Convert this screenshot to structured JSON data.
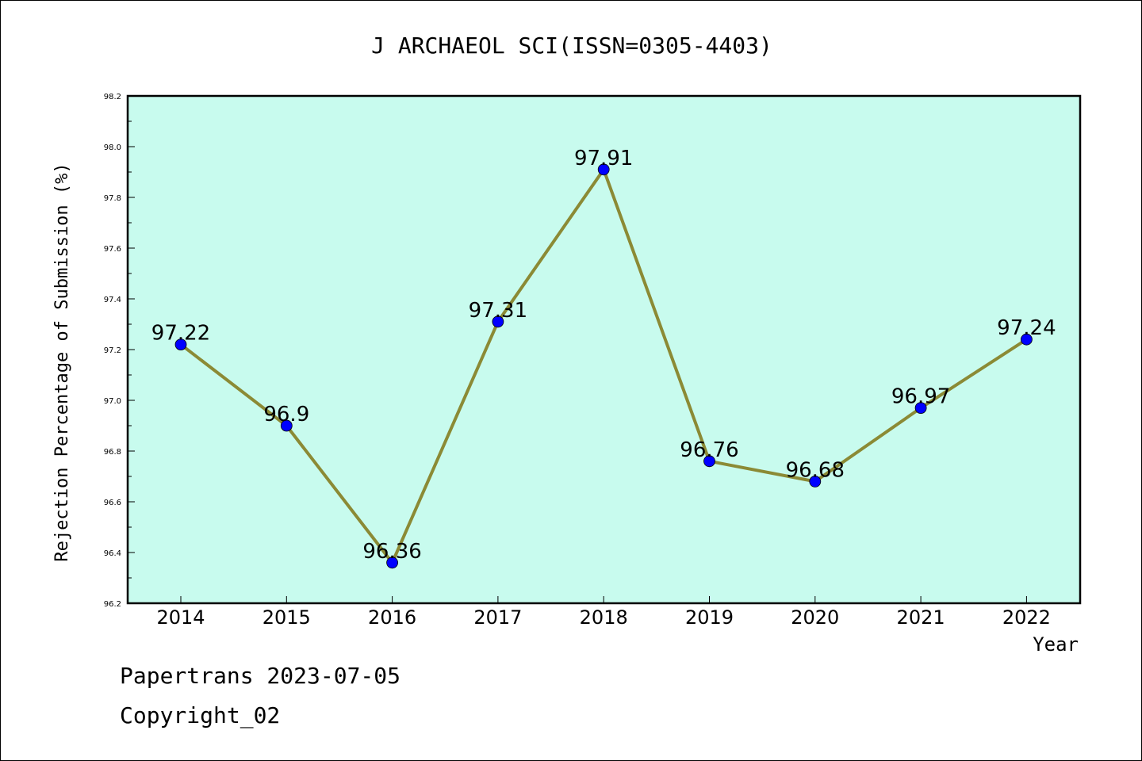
{
  "chart_data": {
    "type": "line",
    "title": "J ARCHAEOL SCI(ISSN=0305-4403)",
    "xlabel": "Year",
    "ylabel": "Rejection Percentage of Submission (%)",
    "categories": [
      "2014",
      "2015",
      "2016",
      "2017",
      "2018",
      "2019",
      "2020",
      "2021",
      "2022"
    ],
    "values": [
      97.22,
      96.9,
      96.36,
      97.31,
      97.91,
      96.76,
      96.68,
      96.97,
      97.24
    ],
    "data_labels": [
      "97.22",
      "96.9",
      "96.36",
      "97.31",
      "97.91",
      "96.76",
      "96.68",
      "96.97",
      "97.24"
    ],
    "ylim": [
      96.2,
      98.2
    ],
    "yticks": [
      "96.2",
      "96.4",
      "96.6",
      "96.8",
      "97.0",
      "97.2",
      "97.4",
      "97.6",
      "97.8",
      "98.0",
      "98.2"
    ],
    "grid": false,
    "colors": {
      "plot_background": "#c8fbee",
      "line": "#8b8a35",
      "marker": "#0000ff"
    }
  },
  "footer": {
    "line1": "Papertrans 2023-07-05",
    "line2": "Copyright_02"
  }
}
